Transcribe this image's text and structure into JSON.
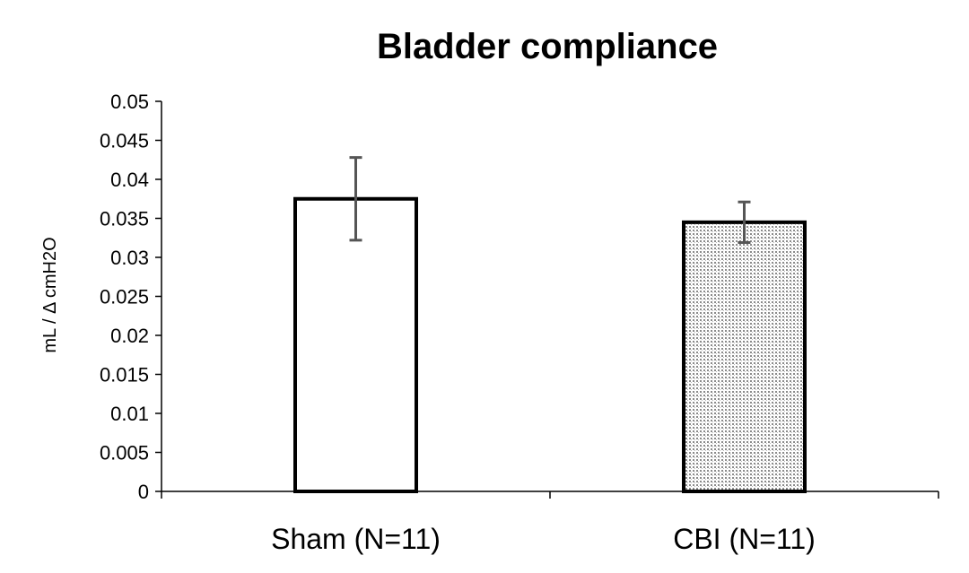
{
  "chart_data": {
    "type": "bar",
    "title": "Bladder compliance",
    "ylabel": "mL / Δ cmH2O",
    "xlabel": "",
    "categories": [
      "Sham (N=11)",
      "CBI (N=11)"
    ],
    "values": [
      0.0375,
      0.0345
    ],
    "error": [
      0.0053,
      0.0026
    ],
    "ylim": [
      0,
      0.05
    ],
    "yticks": [
      "0",
      "0.005",
      "0.01",
      "0.015",
      "0.02",
      "0.025",
      "0.03",
      "0.035",
      "0.04",
      "0.045",
      "0.05"
    ],
    "grid": false,
    "legend": "none",
    "fills": [
      "solid-white",
      "dotted-gray"
    ],
    "colors": {
      "bar_outline": "#000000",
      "error_bar": "#555555",
      "bar_fill": "#ffffff",
      "dot": "#8a8a8a",
      "axis": "#000000"
    }
  }
}
